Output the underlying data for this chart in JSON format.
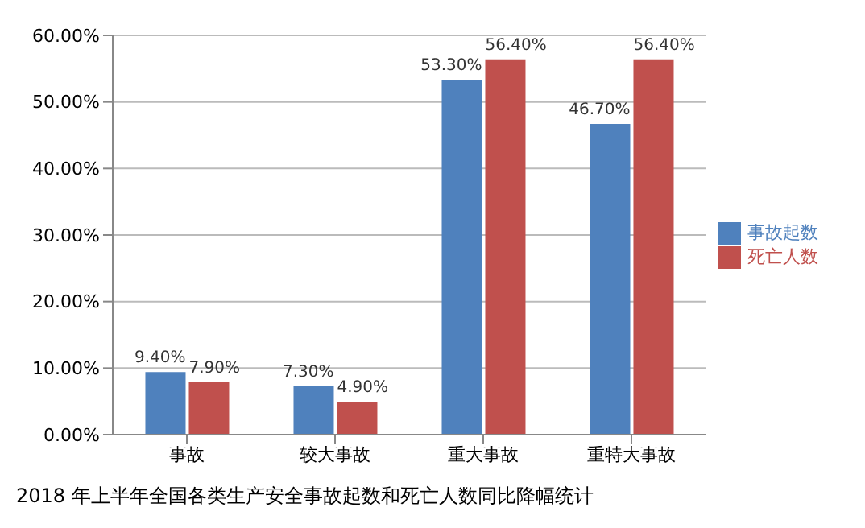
{
  "chart_data": {
    "type": "bar",
    "title": "2018 年上半年全国各类生产安全事故起数和死亡人数同比降幅统计",
    "categories": [
      "事故",
      "较大事故",
      "重大事故",
      "重特大事故"
    ],
    "series": [
      {
        "name": "事故起数",
        "color": "#4f81bd",
        "values": [
          9.4,
          7.3,
          53.3,
          46.7
        ],
        "value_labels": [
          "9.40%",
          "7.30%",
          "53.30%",
          "46.70%"
        ]
      },
      {
        "name": "死亡人数",
        "color": "#c0504d",
        "values": [
          7.9,
          4.9,
          56.4,
          56.4
        ],
        "value_labels": [
          "7.90%",
          "4.90%",
          "56.40%",
          "56.40%"
        ]
      }
    ],
    "ylim": [
      0,
      60
    ],
    "yticks": [
      {
        "value": 0,
        "label": "0.00%"
      },
      {
        "value": 10,
        "label": "10.00%"
      },
      {
        "value": 20,
        "label": "20.00%"
      },
      {
        "value": 30,
        "label": "30.00%"
      },
      {
        "value": 40,
        "label": "40.00%"
      },
      {
        "value": 50,
        "label": "50.00%"
      },
      {
        "value": 60,
        "label": "60.00%"
      }
    ],
    "grid": "y",
    "legend": "right"
  }
}
